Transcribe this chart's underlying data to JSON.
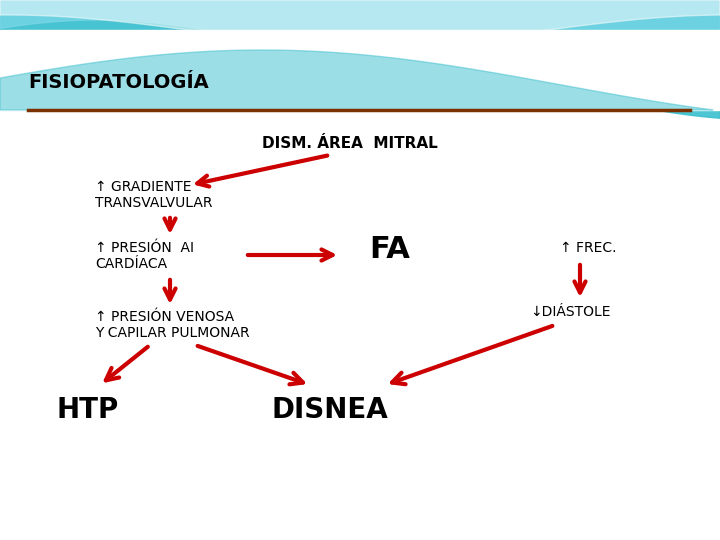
{
  "title": "FISIOPATOLOGÍA",
  "separator_color": "#7B3000",
  "bg_color": "#FFFFFF",
  "arrow_color": "#CC0000",
  "text_color": "#000000",
  "node_texts": {
    "mitral": "DISM. ÁREA  MITRAL",
    "gradiente_line1": "↑ GRADIENTE",
    "gradiente_line2": "TRANSVALVULAR",
    "presion_ai_line1": "↑ PRESIÓN  AI",
    "presion_ai_line2": "CARDÍACA",
    "fa": "FA",
    "frec": "↑ FREC.",
    "presion_venosa_line1": "↑ PRESIÓN VENOSA",
    "presion_venosa_line2": "Y CAPILAR PULMONAR",
    "diastole": "↓DIÁSTOLE",
    "htp": "HTP",
    "disnea": "DISNEA"
  },
  "wave_colors": [
    "#40C4D0",
    "#7DDDE8",
    "#AAEAF0",
    "#FFFFFF"
  ],
  "wave_bg": "#C8EEF5"
}
